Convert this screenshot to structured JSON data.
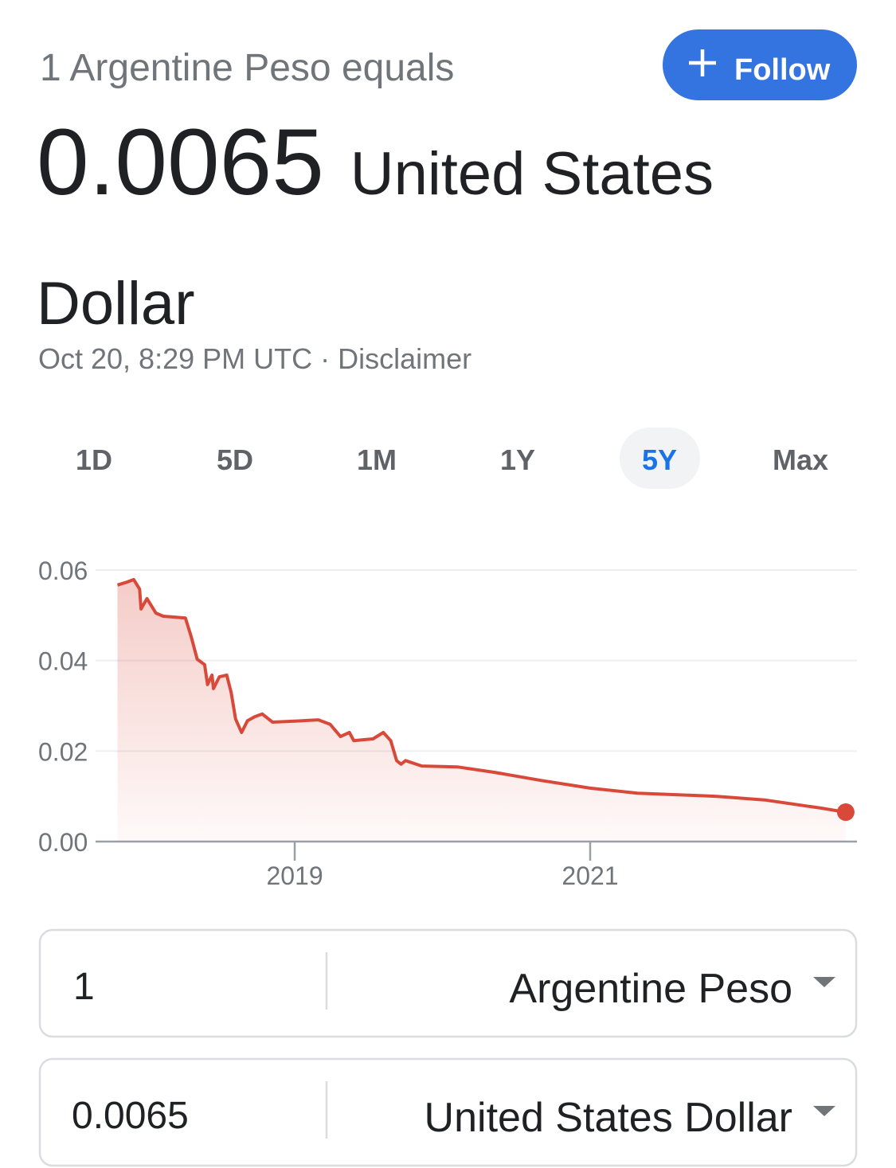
{
  "header": {
    "title": "1 Argentine Peso equals",
    "follow": "Follow",
    "rate": "0.0065",
    "currency": "United States Dollar",
    "timestamp": "Oct 20, 8:29 PM UTC",
    "separator": "·",
    "disclaimer": "Disclaimer"
  },
  "ranges": [
    "1D",
    "5D",
    "1M",
    "1Y",
    "5Y",
    "Max"
  ],
  "selected_range": "5Y",
  "chart_data": {
    "type": "line",
    "x": [
      2017.8,
      2017.87,
      2017.91,
      2017.95,
      2017.96,
      2018.0,
      2018.06,
      2018.11,
      2018.19,
      2018.26,
      2018.3,
      2018.34,
      2018.39,
      2018.41,
      2018.44,
      2018.45,
      2018.49,
      2018.54,
      2018.57,
      2018.6,
      2018.64,
      2018.68,
      2018.73,
      2018.78,
      2018.85,
      2019.0,
      2019.16,
      2019.24,
      2019.31,
      2019.37,
      2019.4,
      2019.53,
      2019.6,
      2019.65,
      2019.69,
      2019.72,
      2019.75,
      2019.86,
      2020.1,
      2020.35,
      2020.67,
      2021.0,
      2021.32,
      2021.86,
      2022.18,
      2022.56,
      2022.73
    ],
    "values": [
      0.0567,
      0.0574,
      0.0579,
      0.0558,
      0.0514,
      0.0537,
      0.0505,
      0.0498,
      0.0496,
      0.0494,
      0.0452,
      0.0403,
      0.0391,
      0.0347,
      0.0368,
      0.0338,
      0.0364,
      0.0368,
      0.0329,
      0.0271,
      0.0241,
      0.0267,
      0.0276,
      0.0282,
      0.0264,
      0.0266,
      0.0269,
      0.0259,
      0.0232,
      0.0241,
      0.0223,
      0.0227,
      0.0241,
      0.0223,
      0.0179,
      0.0171,
      0.0179,
      0.0167,
      0.0165,
      0.0153,
      0.0135,
      0.0118,
      0.0107,
      0.01,
      0.0092,
      0.0074,
      0.0065
    ],
    "color": "#d9493a",
    "area": true,
    "grid": true,
    "xlim": [
      2017.652,
      2022.806
    ],
    "xticks": [
      2019,
      2021
    ],
    "ylim": [
      0,
      0.06
    ],
    "yticks": [
      {
        "value": 0,
        "label": "0.00"
      },
      0.02,
      0.04,
      0.06
    ]
  },
  "converter": {
    "from": {
      "amount": "1",
      "currency": "Argentine Peso"
    },
    "to": {
      "amount": "0.0065",
      "currency": "United States Dollar"
    }
  }
}
